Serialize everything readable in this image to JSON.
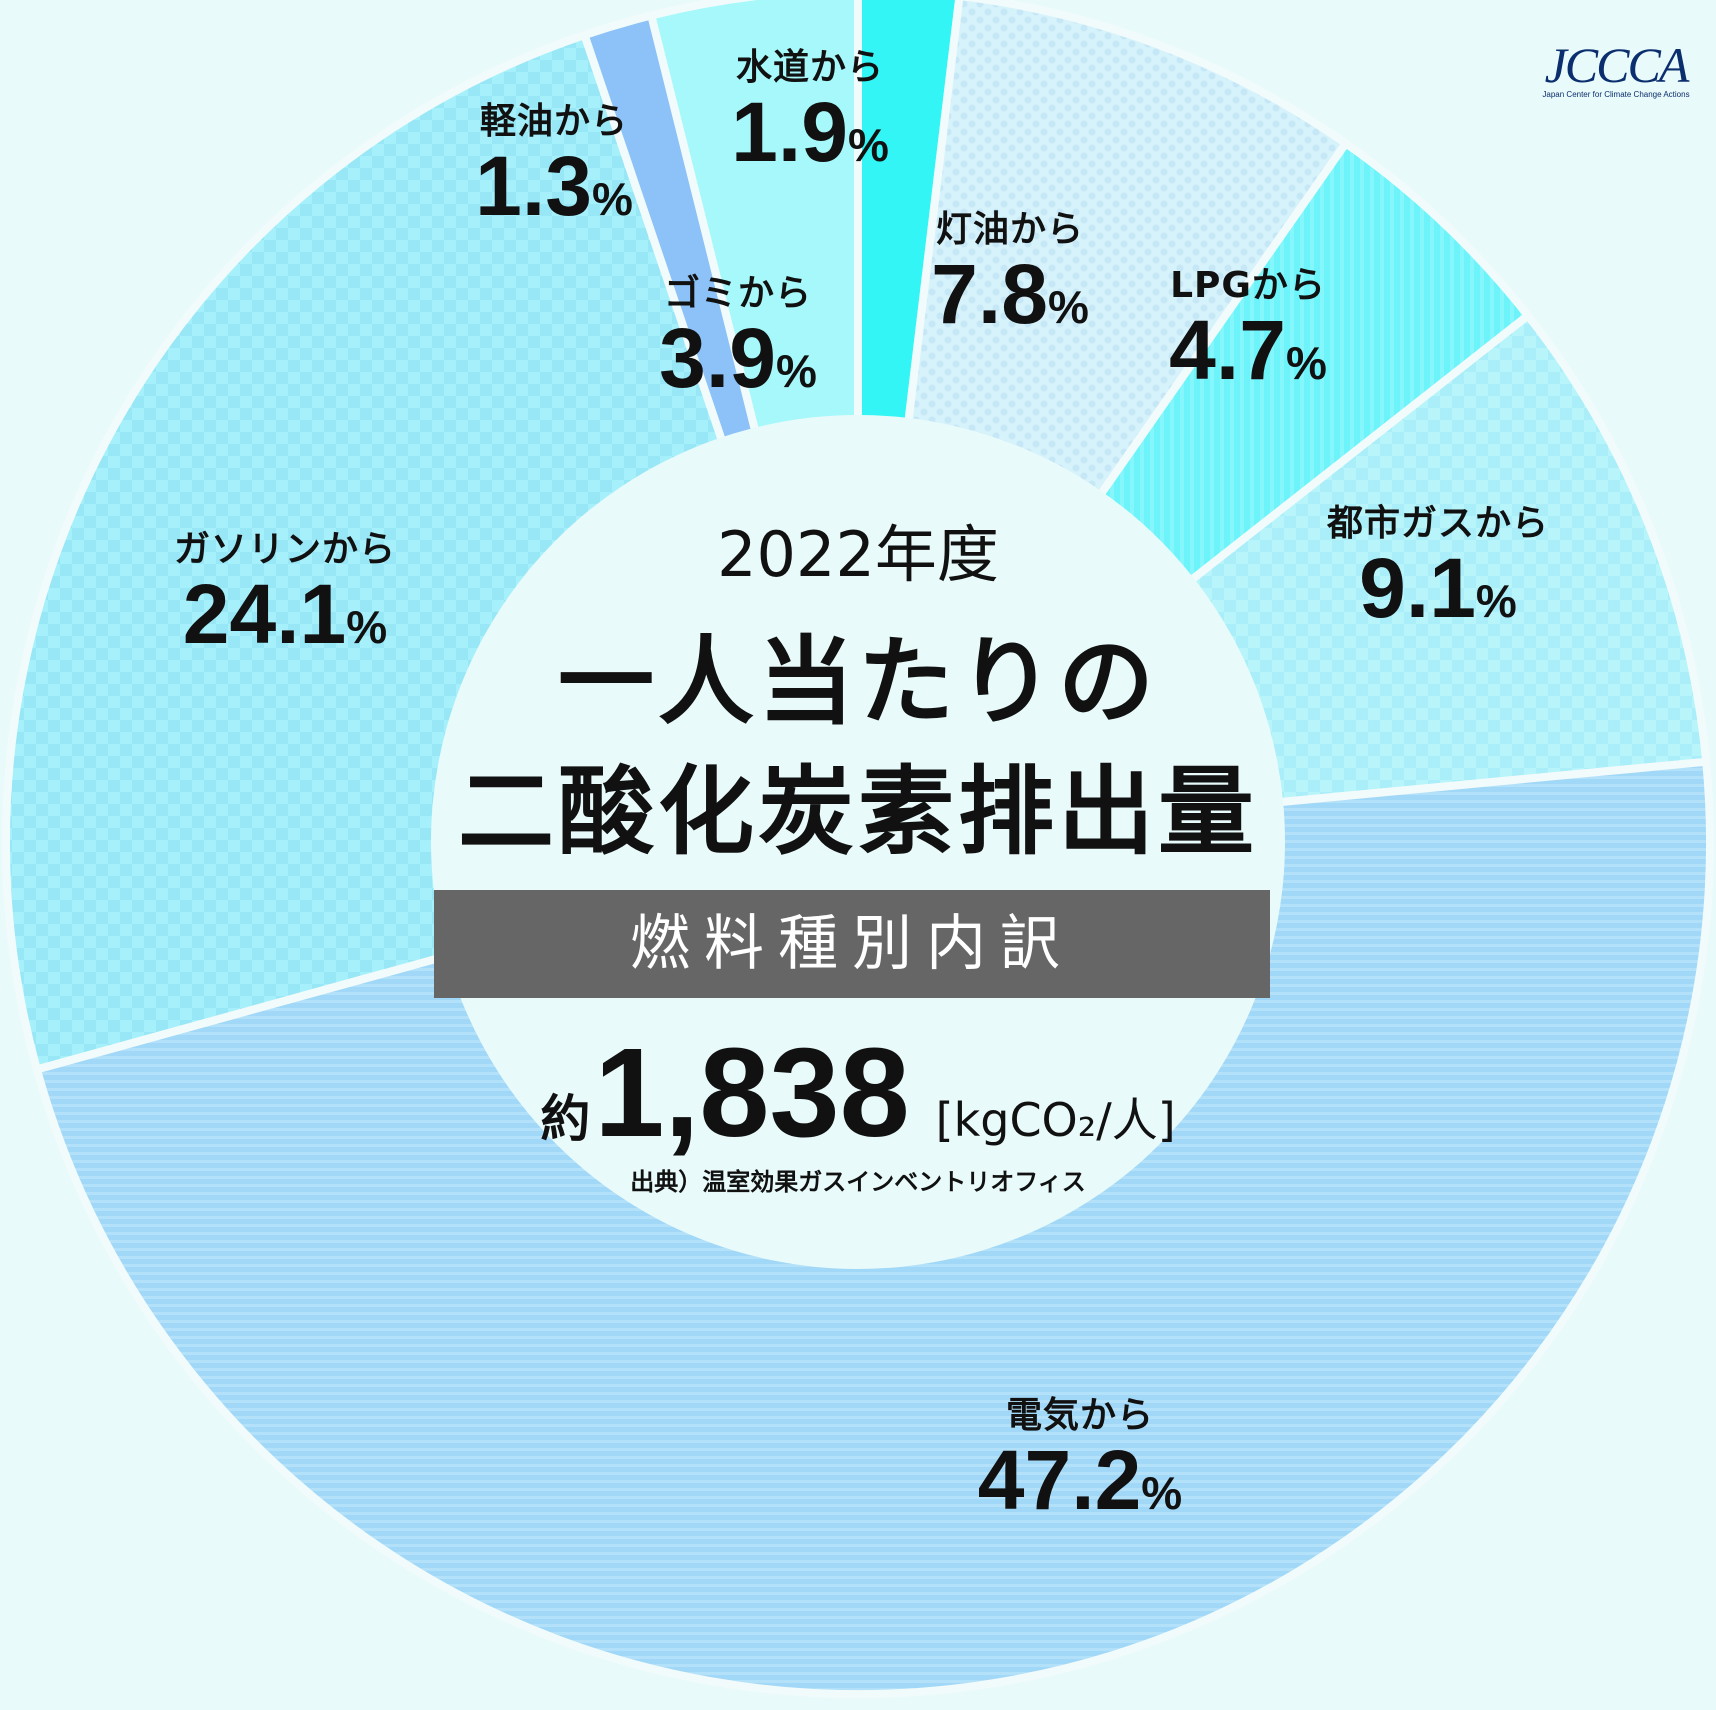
{
  "logo": {
    "text": "JCCCA",
    "subtitle": "Japan Center for Climate Change Actions"
  },
  "center": {
    "year": "2022年度",
    "title_line1": "一人当たりの",
    "title_line2": "二酸化炭素排出量",
    "band": "燃料種別内訳",
    "total_prefix": "約",
    "total_value": "1,838",
    "total_unit": "[kgCO₂/人]",
    "source": "出典）温室効果ガスインベントリオフィス"
  },
  "chart_data": {
    "type": "pie",
    "labels": [
      "水道から",
      "灯油から",
      "LPGから",
      "都市ガスから",
      "電気から",
      "ガソリンから",
      "軽油から",
      "ゴミから"
    ],
    "values": [
      1.9,
      7.8,
      4.7,
      9.1,
      47.2,
      24.1,
      1.3,
      3.9
    ],
    "value_labels": [
      "1.9",
      "7.8",
      "4.7",
      "9.1",
      "47.2",
      "24.1",
      "1.3",
      "3.9"
    ],
    "unit": "%",
    "colors": [
      "#33f5f5",
      "#d6f2fb",
      "#6df4fb",
      "#b7f5fb",
      "#a2d8f7",
      "#a6f0fb",
      "#8cc2f8",
      "#a6f8fb"
    ],
    "order_note": "clockwise from 12 o'clock"
  }
}
